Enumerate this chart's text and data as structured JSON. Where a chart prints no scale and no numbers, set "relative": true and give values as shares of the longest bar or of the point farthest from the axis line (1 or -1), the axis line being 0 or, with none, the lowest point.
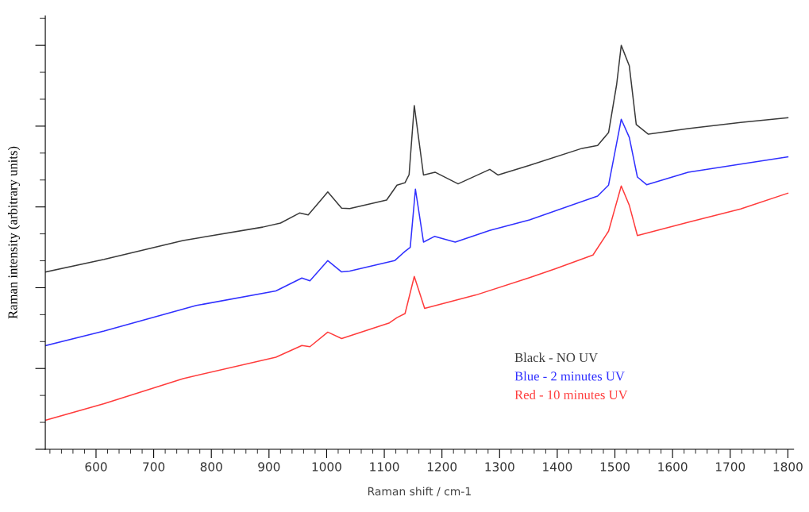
{
  "chart_data": {
    "type": "line",
    "relative": true,
    "xlabel": "Raman shift / cm-1",
    "ylabel": "Raman intensity (arbitrary units)",
    "xlim": [
      512,
      1810
    ],
    "xticks": [
      600,
      700,
      800,
      900,
      1000,
      1100,
      1200,
      1300,
      1400,
      1500,
      1600,
      1700,
      1800
    ],
    "legend": "bottom right",
    "grid": false,
    "marker": "none",
    "line_style": "solid",
    "series": [
      {
        "name": "Black - NO UV",
        "color": "#3a3a3a",
        "x": [
          513,
          614,
          751,
          889,
          920,
          953,
          968,
          1002,
          1026,
          1040,
          1104,
          1122,
          1136,
          1143,
          1152,
          1168,
          1188,
          1228,
          1283,
          1297,
          1352,
          1443,
          1470,
          1489,
          1503,
          1511,
          1525,
          1537,
          1558,
          1627,
          1718,
          1800
        ],
        "values": [
          0.439,
          0.47,
          0.517,
          0.55,
          0.56,
          0.585,
          0.58,
          0.637,
          0.597,
          0.596,
          0.617,
          0.654,
          0.66,
          0.68,
          0.851,
          0.679,
          0.686,
          0.657,
          0.693,
          0.679,
          0.703,
          0.745,
          0.752,
          0.784,
          0.903,
          1.0,
          0.949,
          0.804,
          0.78,
          0.794,
          0.809,
          0.821
        ]
      },
      {
        "name": "Blue - 2 minutes UV",
        "color": "#3030ff",
        "x": [
          513,
          614,
          774,
          912,
          957,
          971,
          1002,
          1026,
          1040,
          1118,
          1136,
          1145,
          1154,
          1168,
          1187,
          1223,
          1283,
          1352,
          1470,
          1489,
          1503,
          1511,
          1525,
          1539,
          1555,
          1627,
          1718,
          1800
        ],
        "values": [
          0.257,
          0.293,
          0.356,
          0.392,
          0.424,
          0.417,
          0.467,
          0.439,
          0.441,
          0.467,
          0.49,
          0.5,
          0.644,
          0.513,
          0.527,
          0.513,
          0.542,
          0.568,
          0.627,
          0.654,
          0.758,
          0.817,
          0.772,
          0.674,
          0.655,
          0.686,
          0.706,
          0.724
        ]
      },
      {
        "name": "Red - 10 minutes UV",
        "color": "#ff3c3c",
        "x": [
          513,
          614,
          751,
          912,
          957,
          971,
          1002,
          1026,
          1109,
          1122,
          1136,
          1152,
          1170,
          1259,
          1352,
          1397,
          1462,
          1489,
          1511,
          1525,
          1539,
          1627,
          1718,
          1800
        ],
        "values": [
          0.072,
          0.113,
          0.175,
          0.228,
          0.257,
          0.254,
          0.29,
          0.274,
          0.313,
          0.326,
          0.336,
          0.428,
          0.349,
          0.382,
          0.425,
          0.447,
          0.481,
          0.54,
          0.652,
          0.604,
          0.529,
          0.562,
          0.595,
          0.634
        ]
      }
    ]
  }
}
